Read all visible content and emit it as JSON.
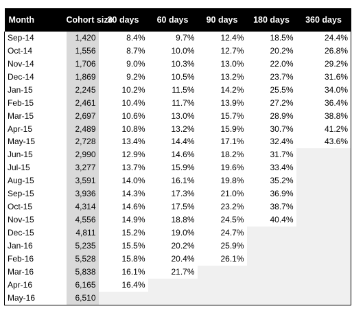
{
  "headers": {
    "month": "Month",
    "cohort_size": "Cohort size",
    "d30": "30 days",
    "d60": "60 days",
    "d90": "90 days",
    "d180": "180 days",
    "d360": "360 days"
  },
  "rows": [
    {
      "month": "Sep-14",
      "size": "1,420",
      "d30": "8.4%",
      "d60": "9.7%",
      "d90": "12.4%",
      "d180": "18.5%",
      "d360": "24.4%"
    },
    {
      "month": "Oct-14",
      "size": "1,556",
      "d30": "8.7%",
      "d60": "10.0%",
      "d90": "12.7%",
      "d180": "20.2%",
      "d360": "26.8%"
    },
    {
      "month": "Nov-14",
      "size": "1,706",
      "d30": "9.0%",
      "d60": "10.3%",
      "d90": "13.0%",
      "d180": "22.0%",
      "d360": "29.2%"
    },
    {
      "month": "Dec-14",
      "size": "1,869",
      "d30": "9.2%",
      "d60": "10.5%",
      "d90": "13.2%",
      "d180": "23.7%",
      "d360": "31.6%"
    },
    {
      "month": "Jan-15",
      "size": "2,245",
      "d30": "10.2%",
      "d60": "11.5%",
      "d90": "14.2%",
      "d180": "25.5%",
      "d360": "34.0%"
    },
    {
      "month": "Feb-15",
      "size": "2,461",
      "d30": "10.4%",
      "d60": "11.7%",
      "d90": "13.9%",
      "d180": "27.2%",
      "d360": "36.4%"
    },
    {
      "month": "Mar-15",
      "size": "2,697",
      "d30": "10.6%",
      "d60": "13.0%",
      "d90": "15.7%",
      "d180": "28.9%",
      "d360": "38.8%"
    },
    {
      "month": "Apr-15",
      "size": "2,489",
      "d30": "10.8%",
      "d60": "13.2%",
      "d90": "15.9%",
      "d180": "30.7%",
      "d360": "41.2%"
    },
    {
      "month": "May-15",
      "size": "2,728",
      "d30": "13.4%",
      "d60": "14.4%",
      "d90": "17.1%",
      "d180": "32.4%",
      "d360": "43.6%"
    },
    {
      "month": "Jun-15",
      "size": "2,990",
      "d30": "12.9%",
      "d60": "14.6%",
      "d90": "18.2%",
      "d180": "31.7%",
      "d360": ""
    },
    {
      "month": "Jul-15",
      "size": "3,277",
      "d30": "13.7%",
      "d60": "15.9%",
      "d90": "19.6%",
      "d180": "33.4%",
      "d360": ""
    },
    {
      "month": "Aug-15",
      "size": "3,591",
      "d30": "14.0%",
      "d60": "16.1%",
      "d90": "19.8%",
      "d180": "35.2%",
      "d360": ""
    },
    {
      "month": "Sep-15",
      "size": "3,936",
      "d30": "14.3%",
      "d60": "17.3%",
      "d90": "21.0%",
      "d180": "36.9%",
      "d360": ""
    },
    {
      "month": "Oct-15",
      "size": "4,314",
      "d30": "14.6%",
      "d60": "17.5%",
      "d90": "23.2%",
      "d180": "38.7%",
      "d360": ""
    },
    {
      "month": "Nov-15",
      "size": "4,556",
      "d30": "14.9%",
      "d60": "18.8%",
      "d90": "24.5%",
      "d180": "40.4%",
      "d360": ""
    },
    {
      "month": "Dec-15",
      "size": "4,811",
      "d30": "15.2%",
      "d60": "19.0%",
      "d90": "24.7%",
      "d180": "",
      "d360": ""
    },
    {
      "month": "Jan-16",
      "size": "5,235",
      "d30": "15.5%",
      "d60": "20.2%",
      "d90": "25.9%",
      "d180": "",
      "d360": ""
    },
    {
      "month": "Feb-16",
      "size": "5,528",
      "d30": "15.8%",
      "d60": "20.4%",
      "d90": "26.1%",
      "d180": "",
      "d360": ""
    },
    {
      "month": "Mar-16",
      "size": "5,838",
      "d30": "16.1%",
      "d60": "21.7%",
      "d90": "",
      "d180": "",
      "d360": ""
    },
    {
      "month": "Apr-16",
      "size": "6,165",
      "d30": "16.4%",
      "d60": "",
      "d90": "",
      "d180": "",
      "d360": ""
    },
    {
      "month": "May-16",
      "size": "6,510",
      "d30": "",
      "d60": "",
      "d90": "",
      "d180": "",
      "d360": ""
    }
  ],
  "colors": {
    "header_bg": "#000000",
    "header_text": "#ffffff",
    "cohort_size_bg": "#d9d9d9",
    "empty_cell_bg": "#f0f0f0"
  }
}
